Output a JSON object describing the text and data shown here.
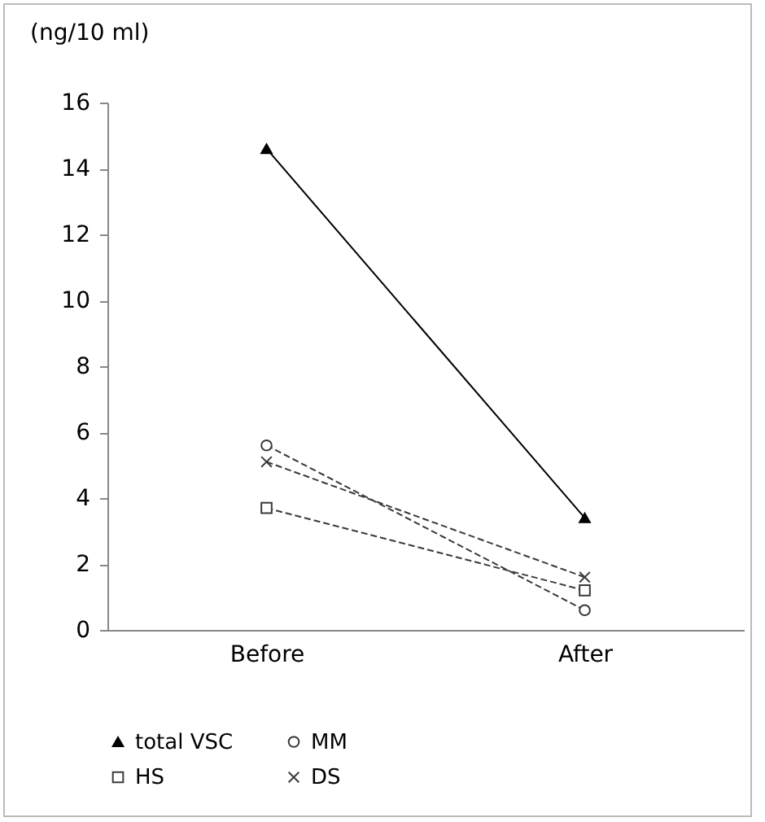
{
  "chart_data": {
    "type": "line",
    "ylabel": "(ng/10 ml)",
    "categories": [
      "Before",
      "After"
    ],
    "series": [
      {
        "name": "total VSC",
        "color": "#000000",
        "values": [
          14.6,
          3.4
        ],
        "marker": "triangle",
        "line_style": "solid"
      },
      {
        "name": "MM",
        "color": "#3a3a3a",
        "values": [
          5.6,
          0.6
        ],
        "marker": "circle",
        "line_style": "dashed"
      },
      {
        "name": "HS",
        "color": "#3a3a3a",
        "values": [
          3.7,
          1.2
        ],
        "marker": "square",
        "line_style": "dashed"
      },
      {
        "name": "DS",
        "color": "#3a3a3a",
        "values": [
          5.1,
          1.6
        ],
        "marker": "cross",
        "line_style": "dashed"
      }
    ],
    "ylim": [
      0,
      16
    ],
    "yticks": [
      0,
      2,
      4,
      6,
      8,
      10,
      12,
      14,
      16
    ],
    "grid": false,
    "legend": "bottom"
  }
}
